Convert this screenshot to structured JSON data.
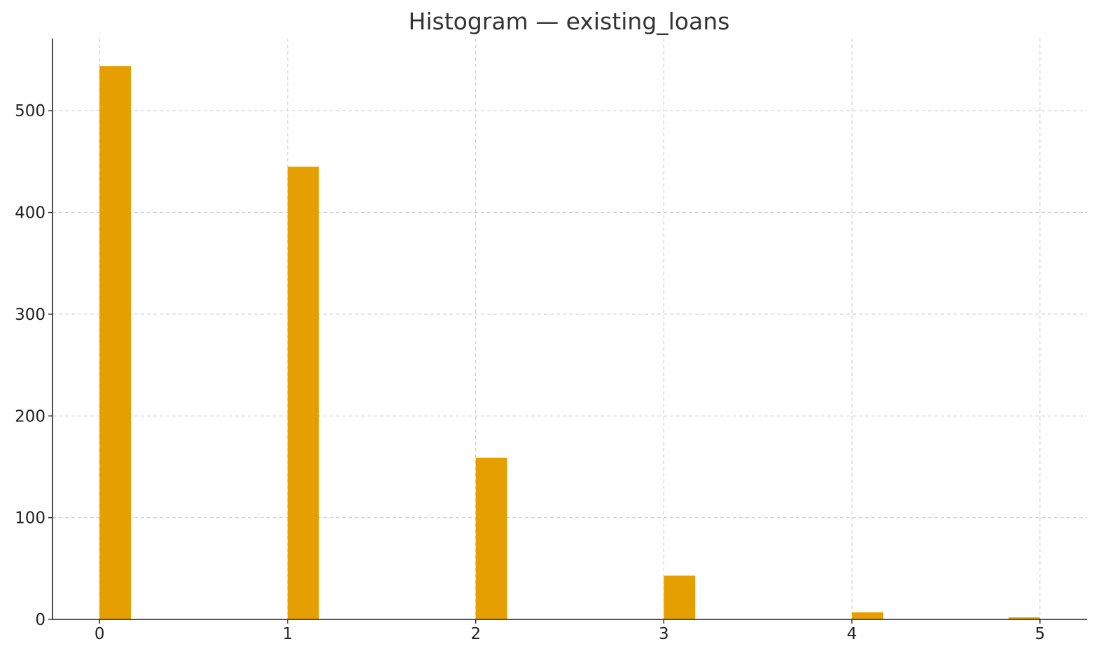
{
  "chart_data": {
    "type": "bar",
    "title": "Histogram — existing_loans",
    "xlabel": "",
    "ylabel": "",
    "x_ticks": [
      "0",
      "1",
      "2",
      "3",
      "4",
      "5"
    ],
    "y_ticks": [
      "0",
      "100",
      "200",
      "300",
      "400",
      "500"
    ],
    "xlim": [
      -0.25,
      5.25
    ],
    "ylim": [
      0,
      571
    ],
    "bins": [
      {
        "x_start": 0.0,
        "x_end": 0.167,
        "count": 544
      },
      {
        "x_start": 1.0,
        "x_end": 1.167,
        "count": 445
      },
      {
        "x_start": 2.0,
        "x_end": 2.167,
        "count": 159
      },
      {
        "x_start": 3.0,
        "x_end": 3.167,
        "count": 43
      },
      {
        "x_start": 4.0,
        "x_end": 4.167,
        "count": 7
      },
      {
        "x_start": 4.833,
        "x_end": 5.0,
        "count": 2
      }
    ],
    "bar_color": "#E69F00",
    "grid": true,
    "legend": "none"
  }
}
